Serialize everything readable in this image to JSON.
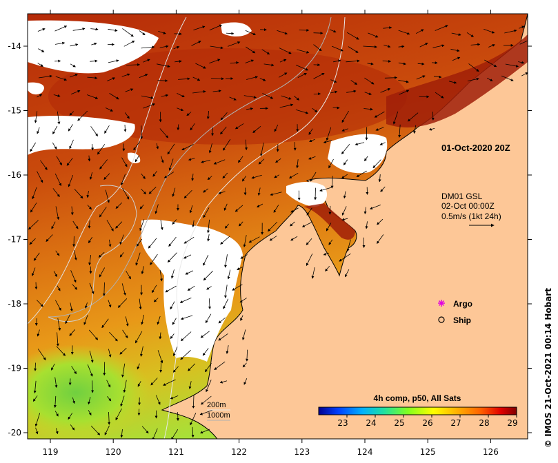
{
  "map": {
    "date_label": "01-Oct-2020 20Z",
    "current_model": {
      "line1": "DM01 GSL",
      "line2": "02-Oct 00:00Z",
      "line3": "0.5m/s (1kt 24h)"
    },
    "legend": [
      {
        "label": "Argo",
        "marker": "magenta-asterisk",
        "color": "#e000e0"
      },
      {
        "label": "Ship",
        "marker": "open-circle",
        "color": "#000000"
      }
    ],
    "bathymetry": {
      "contour1": "200m",
      "contour2": "1000m"
    },
    "colorbar": {
      "title": "4h comp, p50, All Sats",
      "ticks": [
        "23",
        "24",
        "25",
        "26",
        "27",
        "28",
        "29"
      ],
      "range": [
        22,
        29
      ],
      "colors": [
        "#000090",
        "#0040ff",
        "#00b0ff",
        "#20e0a0",
        "#80ff20",
        "#ffff00",
        "#ffb000",
        "#ff6000",
        "#e00000",
        "#800000"
      ]
    },
    "x_ticks": [
      "119",
      "120",
      "121",
      "122",
      "123",
      "124",
      "125",
      "126"
    ],
    "y_ticks": [
      "-14",
      "-15",
      "-16",
      "-17",
      "-18",
      "-19",
      "-20"
    ],
    "credit": "IMOS 21-Oct-2021 00:14 Hobart",
    "copyright_symbol": "©",
    "colors": {
      "land": "#fdc797",
      "cloud": "#ffffff",
      "sst_hot": "#b82a0a",
      "sst_mid": "#e07a10",
      "sst_cool": "#b8e030"
    }
  }
}
